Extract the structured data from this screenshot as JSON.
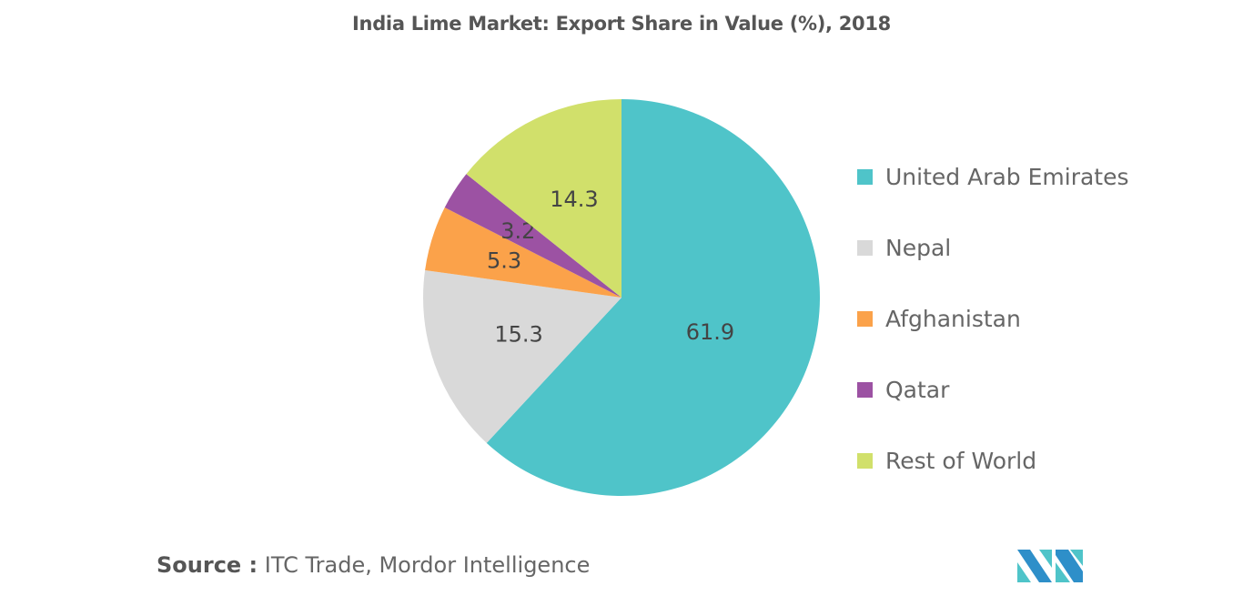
{
  "chart_data": {
    "type": "pie",
    "title": "India Lime Market: Export Share in Value (%), 2018",
    "categories": [
      "United Arab Emirates",
      "Nepal",
      "Afghanistan",
      "Qatar",
      "Rest of World"
    ],
    "values": [
      61.9,
      15.3,
      5.3,
      3.2,
      14.3
    ],
    "labels": [
      "61.9",
      "15.3",
      "5.3",
      "3.2",
      "14.3"
    ],
    "colors": [
      "#4fc4c9",
      "#d9d9d9",
      "#fba24a",
      "#9c52a3",
      "#d1e06b"
    ],
    "legend_position": "right"
  },
  "source": {
    "label": "Source :",
    "text": " ITC Trade, Mordor Intelligence"
  },
  "logo": {
    "text": "Mordor Intelligence",
    "colors": [
      "#2e8fc9",
      "#4fc4c9"
    ]
  }
}
